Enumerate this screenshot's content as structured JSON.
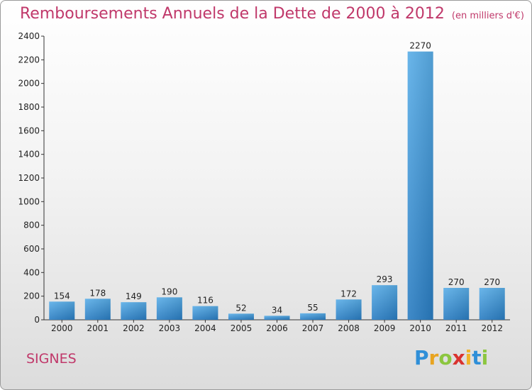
{
  "header": {
    "title": "Remboursements Annuels de la Dette de 2000 à 2012",
    "unit": "(en milliers d'€)"
  },
  "footer": {
    "commune": "SIGNES",
    "logo_letters": [
      "P",
      "r",
      "o",
      "x",
      "i",
      "t",
      "i"
    ]
  },
  "colors": {
    "title": "#c0386a",
    "bar_light": "#5aaee8",
    "bar_dark": "#2a7dc2"
  },
  "chart_data": {
    "type": "bar",
    "categories": [
      "2000",
      "2001",
      "2002",
      "2003",
      "2004",
      "2005",
      "2006",
      "2007",
      "2008",
      "2009",
      "2010",
      "2011",
      "2012"
    ],
    "values": [
      154,
      178,
      149,
      190,
      116,
      52,
      34,
      55,
      172,
      293,
      2270,
      270,
      270
    ],
    "title": "Remboursements Annuels de la Dette de 2000 à 2012",
    "ylim": [
      0,
      2400
    ],
    "yticks": [
      0,
      200,
      400,
      600,
      800,
      1000,
      1200,
      1400,
      1600,
      1800,
      2000,
      2200,
      2400
    ],
    "grid": false,
    "data_labels": true
  }
}
